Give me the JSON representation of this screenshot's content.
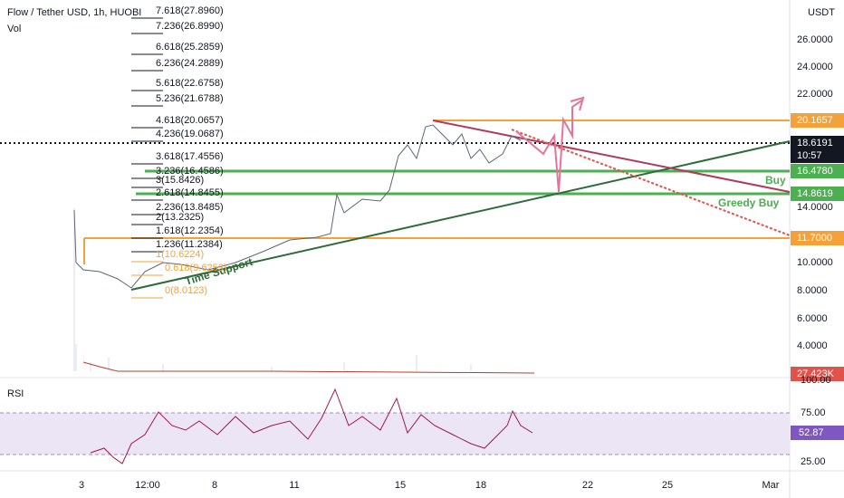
{
  "header": {
    "title": "Flow / Tether USD, 1h, HUOBI",
    "volume_label": "Vol"
  },
  "price_axis": {
    "unit": "USDT",
    "labels": [
      "26.0000",
      "24.0000",
      "22.0000",
      "14.0000",
      "10.0000",
      "8.0000",
      "6.0000",
      "4.0000"
    ],
    "tags": [
      "20.1657",
      "18.6191",
      "10:57",
      "16.4780",
      "14.8619",
      "11.7000",
      "27.423K"
    ]
  },
  "fib_levels": [
    "7.618(27.8960)",
    "7.236(26.8990)",
    "6.618(25.2859)",
    "6.236(24.2889)",
    "5.618(22.6758)",
    "5.236(21.6788)",
    "4.618(20.0657)",
    "4.236(19.0687)",
    "3.618(17.4556)",
    "3.236(16.4586)",
    "3(15.8426)",
    "2.618(14.8455)",
    "2.236(13.8485)",
    "2(13.2325)",
    "1.618(12.2354)",
    "1.236(11.2384)",
    "1(10.6224)",
    "0.618(9.6253)",
    "0(8.0123)"
  ],
  "annotations": {
    "buy": "Buy",
    "greedy_buy": "Greedy Buy",
    "time_support": "Time Support"
  },
  "rsi": {
    "label": "RSI",
    "axis_labels": [
      "100.00",
      "75.00",
      "25.00"
    ],
    "value_tag": "52.87"
  },
  "time_axis": [
    "3",
    "12:00",
    "8",
    "11",
    "15",
    "18",
    "22",
    "25",
    "Mar"
  ]
}
